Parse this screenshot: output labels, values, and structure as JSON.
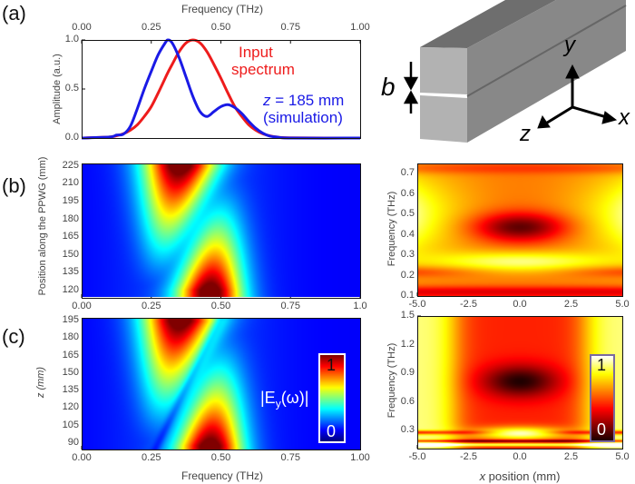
{
  "panel_labels": {
    "a": "(a)",
    "b": "(b)",
    "c": "(c)"
  },
  "diagram": {
    "gap_label": "b",
    "axis_x": "x",
    "axis_y": "y",
    "axis_z": "z",
    "colors": {
      "front": "#b2b2b2",
      "top": "#6e6e6e",
      "side": "#888888"
    }
  },
  "chart_data": [
    {
      "id": "a",
      "type": "line",
      "xlabel": "Frequency (THz)",
      "ylabel": "Amplitude (a.u.)",
      "xlim": [
        0,
        1
      ],
      "ylim": [
        0,
        1
      ],
      "xticks": [
        "0.00",
        "0.25",
        "0.50",
        "0.75",
        "1.00"
      ],
      "yticks": [
        "0.0",
        "0.5",
        "1.0"
      ],
      "xaxis_position": "top",
      "x": [
        0,
        0.1,
        0.125,
        0.15,
        0.175,
        0.2,
        0.225,
        0.25,
        0.275,
        0.3,
        0.31,
        0.325,
        0.35,
        0.375,
        0.4,
        0.425,
        0.45,
        0.475,
        0.5,
        0.525,
        0.55,
        0.575,
        0.6,
        0.625,
        0.65,
        0.675,
        0.7,
        0.75,
        1.0
      ],
      "series": [
        {
          "name": "Input spectrum",
          "color": "#ee1c1c",
          "values": [
            0,
            0.011,
            0.023,
            0.044,
            0.08,
            0.135,
            0.22,
            0.32,
            0.46,
            0.61,
            0.67,
            0.75,
            0.88,
            0.97,
            1.0,
            0.97,
            0.88,
            0.75,
            0.61,
            0.46,
            0.32,
            0.22,
            0.135,
            0.08,
            0.044,
            0.023,
            0.011,
            0.002,
            0
          ]
        },
        {
          "name": "z = 185 mm (simulation)",
          "color": "#1a1ae6",
          "values": [
            0,
            0.01,
            0.03,
            0.04,
            0.12,
            0.3,
            0.5,
            0.68,
            0.85,
            0.97,
            1.0,
            0.97,
            0.82,
            0.62,
            0.42,
            0.27,
            0.22,
            0.27,
            0.32,
            0.34,
            0.31,
            0.25,
            0.17,
            0.1,
            0.05,
            0.02,
            0.01,
            0,
            0
          ]
        }
      ],
      "annotations": {
        "input": [
          "Input",
          "spectrum"
        ],
        "sim_z": "z",
        "sim_rest": " = 185 mm",
        "sim_note": "(simulation)"
      }
    },
    {
      "id": "b-left",
      "type": "heatmap",
      "colormap": "jet",
      "xlabel": "",
      "ylabel": "Position along the PPWG (mm)",
      "xlim": [
        0,
        1
      ],
      "ylim": [
        114,
        227
      ],
      "xticks": [
        "0.00",
        "0.25",
        "0.50",
        "0.75",
        "1.0"
      ],
      "yticks": [
        "120",
        "135",
        "150",
        "165",
        "180",
        "195",
        "210",
        "225"
      ]
    },
    {
      "id": "c-left",
      "type": "heatmap",
      "colormap": "jet",
      "xlabel": "Frequency (THz)",
      "ylabel": "z (mm)",
      "xlim": [
        0,
        1
      ],
      "ylim": [
        84.6,
        197.3
      ],
      "xticks": [
        "0.00",
        "0.25",
        "0.50",
        "0.75",
        "1.00"
      ],
      "yticks": [
        "90",
        "105",
        "120",
        "135",
        "150",
        "165",
        "180",
        "195"
      ],
      "colorbar": {
        "label": "|Ey(ω)|",
        "label_main": "|E",
        "label_sub": "y",
        "label_tail": "(ω)|",
        "min_label": "0",
        "max_label": "1",
        "range": [
          0,
          1
        ],
        "border": "#ffffff"
      }
    },
    {
      "id": "b-right",
      "type": "heatmap",
      "colormap": "hot",
      "xlabel": "",
      "ylabel": "Frequency (THz)",
      "xlim": [
        -5,
        5
      ],
      "ylim": [
        0.1,
        0.75
      ],
      "xticks": [
        "-5.0",
        "-2.5",
        "0.0",
        "2.5",
        "5.0"
      ],
      "yticks": [
        "0.1",
        "0.2",
        "0.3",
        "0.4",
        "0.5",
        "0.6",
        "0.7"
      ]
    },
    {
      "id": "c-right",
      "type": "heatmap",
      "colormap": "hot",
      "xlabel": "x position (mm)",
      "xlabel_italic": "x",
      "xlabel_rest": " position (mm)",
      "ylabel": "Frequency (THz)",
      "xlim": [
        -5,
        5
      ],
      "ylim": [
        0.11,
        1.5
      ],
      "xticks": [
        "-5.0",
        "-2.5",
        "0.0",
        "2.5",
        "5.0"
      ],
      "yticks": [
        "0.3",
        "0.6",
        "0.9",
        "1.2",
        "1.5"
      ],
      "colorbar": {
        "min_label": "0",
        "max_label": "1",
        "range": [
          0,
          1
        ],
        "border": "#7a6aa0"
      }
    }
  ]
}
